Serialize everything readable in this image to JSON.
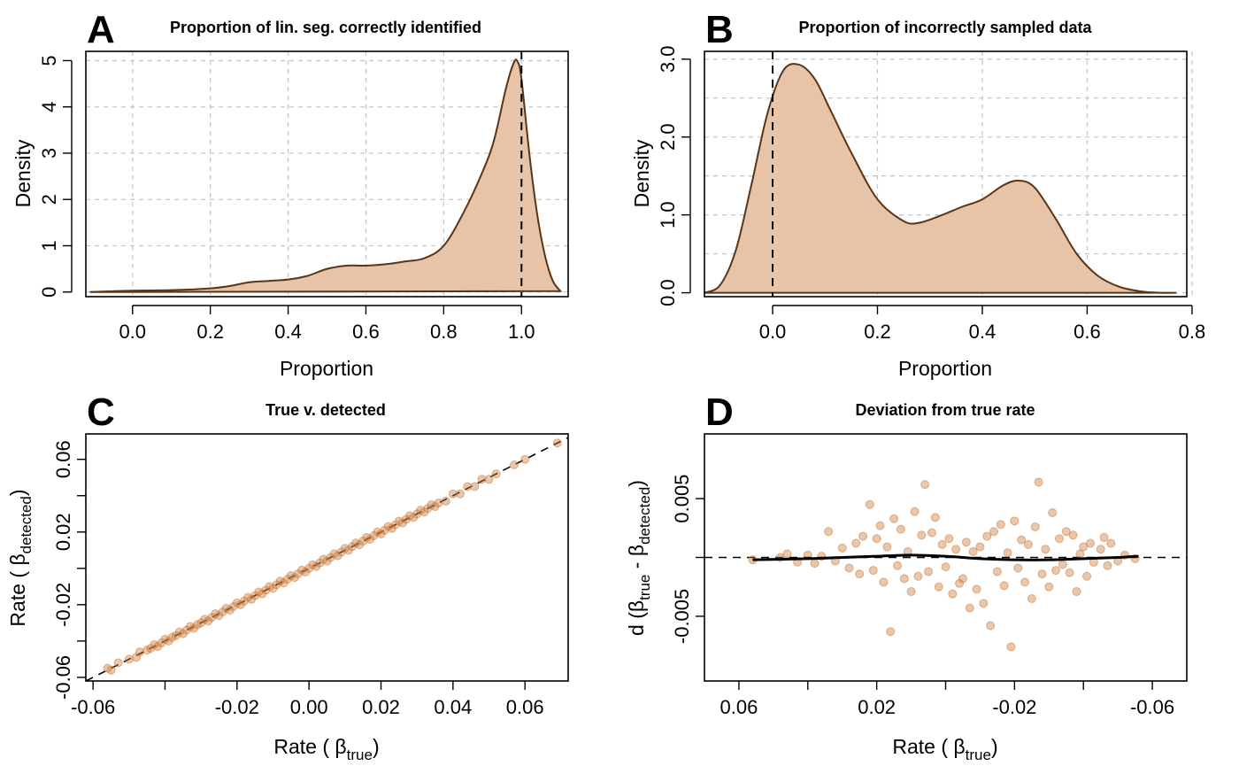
{
  "panels": {
    "A": {
      "letter": "A",
      "title": "Proportion of lin. seg. correctly identified",
      "xlabel": "Proportion",
      "ylabel": "Density"
    },
    "B": {
      "letter": "B",
      "title": "Proportion of incorrectly sampled data",
      "xlabel": "Proportion",
      "ylabel": "Density"
    },
    "C": {
      "letter": "C",
      "title": "True v. detected",
      "xlabel_main": "Rate ( ",
      "xlabel_greek": "β",
      "xlabel_sub": "true",
      "xlabel_close": ")",
      "ylabel_main": "Rate ( ",
      "ylabel_greek": "β",
      "ylabel_sub": "detected",
      "ylabel_close": ")"
    },
    "D": {
      "letter": "D",
      "title": "Deviation from true rate",
      "xlabel_main": "Rate ( ",
      "xlabel_greek": "β",
      "xlabel_sub": "true",
      "xlabel_close": ")",
      "ylabel_main": "d (",
      "ylabel_greek1": "β",
      "ylabel_sub1": "true",
      "ylabel_mid": " - ",
      "ylabel_greek2": "β",
      "ylabel_sub2": "detected",
      "ylabel_close": ")"
    }
  },
  "chart_data": [
    {
      "id": "A",
      "type": "area",
      "title": "Proportion of lin. seg. correctly identified",
      "xlabel": "Proportion",
      "ylabel": "Density",
      "xlim": [
        -0.12,
        1.12
      ],
      "ylim": [
        -0.1,
        5.2
      ],
      "xticks": [
        0.0,
        0.2,
        0.4,
        0.6,
        0.8,
        1.0
      ],
      "xtick_labels": [
        "0.0",
        "0.2",
        "0.4",
        "0.6",
        "0.8",
        "1.0"
      ],
      "yticks": [
        0,
        1,
        2,
        3,
        4,
        5
      ],
      "ytick_labels": [
        "0",
        "1",
        "2",
        "3",
        "4",
        "5"
      ],
      "grid": true,
      "reference_line": {
        "orientation": "vertical",
        "value": 1.0
      },
      "x": [
        -0.11,
        0.0,
        0.1,
        0.2,
        0.25,
        0.3,
        0.35,
        0.4,
        0.45,
        0.5,
        0.55,
        0.6,
        0.65,
        0.7,
        0.75,
        0.8,
        0.85,
        0.9,
        0.93,
        0.96,
        0.98,
        0.99,
        1.0,
        1.02,
        1.04,
        1.06,
        1.08,
        1.1
      ],
      "y": [
        0.0,
        0.03,
        0.04,
        0.08,
        0.13,
        0.21,
        0.24,
        0.27,
        0.35,
        0.5,
        0.57,
        0.57,
        0.6,
        0.66,
        0.73,
        1.0,
        1.7,
        2.6,
        3.3,
        4.4,
        4.95,
        4.98,
        4.6,
        3.0,
        1.7,
        0.8,
        0.25,
        0.02
      ]
    },
    {
      "id": "B",
      "type": "area",
      "title": "Proportion of incorrectly sampled data",
      "xlabel": "Proportion",
      "ylabel": "Density",
      "xlim": [
        -0.13,
        0.79
      ],
      "ylim": [
        -0.05,
        3.1
      ],
      "xticks": [
        0.0,
        0.2,
        0.4,
        0.6,
        0.8
      ],
      "xtick_labels": [
        "0.0",
        "0.2",
        "0.4",
        "0.6",
        "0.8"
      ],
      "yticks": [
        0.0,
        1.0,
        2.0,
        3.0
      ],
      "ytick_labels": [
        "0.0",
        "1.0",
        "2.0",
        "3.0"
      ],
      "ygrid": [
        0.0,
        0.5,
        1.0,
        1.5,
        2.0,
        2.5,
        3.0
      ],
      "grid": true,
      "reference_line": {
        "orientation": "vertical",
        "value": 0.0
      },
      "x": [
        -0.13,
        -0.1,
        -0.07,
        -0.04,
        -0.01,
        0.02,
        0.05,
        0.08,
        0.11,
        0.15,
        0.2,
        0.25,
        0.28,
        0.32,
        0.36,
        0.4,
        0.44,
        0.47,
        0.5,
        0.54,
        0.58,
        0.62,
        0.66,
        0.7,
        0.74,
        0.77
      ],
      "y": [
        0.0,
        0.1,
        0.55,
        1.4,
        2.3,
        2.85,
        2.93,
        2.75,
        2.35,
        1.8,
        1.2,
        0.92,
        0.9,
        0.99,
        1.1,
        1.2,
        1.38,
        1.44,
        1.35,
        0.95,
        0.5,
        0.22,
        0.08,
        0.02,
        0.0,
        0.0
      ]
    },
    {
      "id": "C",
      "type": "scatter",
      "title": "True v. detected",
      "xlabel": "Rate ( βtrue)",
      "ylabel": "Rate ( βdetected)",
      "xlim": [
        -0.062,
        0.072
      ],
      "ylim": [
        -0.062,
        0.074
      ],
      "xticks": [
        -0.06,
        -0.04,
        -0.02,
        0.0,
        0.02,
        0.04,
        0.06
      ],
      "xtick_labels": [
        "-0.06",
        "",
        "-0.02",
        "0.00",
        "0.02",
        "0.04",
        "0.06"
      ],
      "yticks": [
        -0.06,
        -0.04,
        -0.02,
        0.0,
        0.02,
        0.04,
        0.06
      ],
      "ytick_labels": [
        "-0.06",
        "",
        "-0.02",
        "",
        "0.02",
        "",
        "0.06"
      ],
      "reference_line": {
        "type": "identity"
      },
      "points": [
        [
          -0.056,
          -0.055
        ],
        [
          -0.055,
          -0.056
        ],
        [
          -0.053,
          -0.052
        ],
        [
          -0.05,
          -0.05
        ],
        [
          -0.048,
          -0.049
        ],
        [
          -0.047,
          -0.046
        ],
        [
          -0.045,
          -0.045
        ],
        [
          -0.044,
          -0.044
        ],
        [
          -0.043,
          -0.042
        ],
        [
          -0.042,
          -0.043
        ],
        [
          -0.041,
          -0.041
        ],
        [
          -0.04,
          -0.039
        ],
        [
          -0.039,
          -0.04
        ],
        [
          -0.038,
          -0.038
        ],
        [
          -0.037,
          -0.037
        ],
        [
          -0.036,
          -0.035
        ],
        [
          -0.035,
          -0.036
        ],
        [
          -0.034,
          -0.034
        ],
        [
          -0.033,
          -0.032
        ],
        [
          -0.032,
          -0.033
        ],
        [
          -0.031,
          -0.031
        ],
        [
          -0.03,
          -0.03
        ],
        [
          -0.029,
          -0.028
        ],
        [
          -0.028,
          -0.029
        ],
        [
          -0.027,
          -0.027
        ],
        [
          -0.026,
          -0.025
        ],
        [
          -0.025,
          -0.026
        ],
        [
          -0.024,
          -0.024
        ],
        [
          -0.023,
          -0.022
        ],
        [
          -0.022,
          -0.023
        ],
        [
          -0.021,
          -0.021
        ],
        [
          -0.02,
          -0.019
        ],
        [
          -0.019,
          -0.02
        ],
        [
          -0.018,
          -0.018
        ],
        [
          -0.017,
          -0.016
        ],
        [
          -0.016,
          -0.017
        ],
        [
          -0.015,
          -0.015
        ],
        [
          -0.014,
          -0.013
        ],
        [
          -0.013,
          -0.014
        ],
        [
          -0.012,
          -0.012
        ],
        [
          -0.011,
          -0.01
        ],
        [
          -0.01,
          -0.011
        ],
        [
          -0.009,
          -0.009
        ],
        [
          -0.008,
          -0.007
        ],
        [
          -0.007,
          -0.008
        ],
        [
          -0.006,
          -0.006
        ],
        [
          -0.005,
          -0.004
        ],
        [
          -0.004,
          -0.005
        ],
        [
          -0.003,
          -0.003
        ],
        [
          -0.002,
          -0.001
        ],
        [
          -0.001,
          -0.002
        ],
        [
          0.0,
          0.0
        ],
        [
          0.001,
          0.002
        ],
        [
          0.002,
          0.001
        ],
        [
          0.003,
          0.003
        ],
        [
          0.004,
          0.005
        ],
        [
          0.005,
          0.004
        ],
        [
          0.006,
          0.006
        ],
        [
          0.007,
          0.008
        ],
        [
          0.008,
          0.007
        ],
        [
          0.009,
          0.009
        ],
        [
          0.01,
          0.011
        ],
        [
          0.011,
          0.01
        ],
        [
          0.012,
          0.012
        ],
        [
          0.013,
          0.014
        ],
        [
          0.014,
          0.013
        ],
        [
          0.015,
          0.015
        ],
        [
          0.016,
          0.017
        ],
        [
          0.017,
          0.016
        ],
        [
          0.018,
          0.018
        ],
        [
          0.019,
          0.02
        ],
        [
          0.02,
          0.019
        ],
        [
          0.021,
          0.021
        ],
        [
          0.022,
          0.023
        ],
        [
          0.023,
          0.022
        ],
        [
          0.024,
          0.024
        ],
        [
          0.025,
          0.026
        ],
        [
          0.026,
          0.025
        ],
        [
          0.027,
          0.027
        ],
        [
          0.028,
          0.029
        ],
        [
          0.029,
          0.028
        ],
        [
          0.03,
          0.03
        ],
        [
          0.031,
          0.032
        ],
        [
          0.032,
          0.031
        ],
        [
          0.033,
          0.033
        ],
        [
          0.034,
          0.035
        ],
        [
          0.035,
          0.034
        ],
        [
          0.036,
          0.036
        ],
        [
          0.038,
          0.037
        ],
        [
          0.04,
          0.041
        ],
        [
          0.042,
          0.041
        ],
        [
          0.044,
          0.045
        ],
        [
          0.046,
          0.045
        ],
        [
          0.048,
          0.049
        ],
        [
          0.05,
          0.049
        ],
        [
          0.052,
          0.052
        ],
        [
          0.057,
          0.057
        ],
        [
          0.06,
          0.06
        ],
        [
          0.069,
          0.069
        ]
      ]
    },
    {
      "id": "D",
      "type": "scatter",
      "title": "Deviation from true rate",
      "xlabel": "Rate ( βtrue)",
      "ylabel": "d (βtrue - βdetected)",
      "x_reversed": true,
      "y_reversed": true,
      "xlim": [
        0.07,
        -0.07
      ],
      "ylim": [
        -0.0105,
        0.0105
      ],
      "xticks": [
        0.06,
        0.04,
        0.02,
        0.0,
        -0.02,
        -0.04,
        -0.06
      ],
      "xtick_labels": [
        "0.06",
        "",
        "0.02",
        "",
        "-0.02",
        "",
        "-0.06"
      ],
      "yticks": [
        -0.005,
        0.0,
        0.005
      ],
      "ytick_labels": [
        "-0.005",
        "",
        "0.005"
      ],
      "reference_line": {
        "orientation": "horizontal",
        "value": 0.0
      },
      "smooth_line": {
        "x": [
          0.056,
          0.04,
          0.03,
          0.02,
          0.01,
          0.0,
          -0.01,
          -0.02,
          -0.03,
          -0.04,
          -0.05,
          -0.056
        ],
        "y": [
          -0.0002,
          -0.0001,
          0.0,
          0.0001,
          0.0002,
          0.0001,
          -0.0001,
          -0.0002,
          -0.0002,
          -0.0001,
          0.0,
          0.0001
        ]
      },
      "points": [
        [
          0.056,
          -0.0002
        ],
        [
          0.048,
          0.0
        ],
        [
          0.046,
          0.0003
        ],
        [
          0.043,
          -0.0004
        ],
        [
          0.04,
          0.0002
        ],
        [
          0.038,
          -0.0005
        ],
        [
          0.036,
          0.0001
        ],
        [
          0.034,
          0.0022
        ],
        [
          0.032,
          -0.0003
        ],
        [
          0.03,
          0.0008
        ],
        [
          0.028,
          -0.0009
        ],
        [
          0.026,
          0.0012
        ],
        [
          0.025,
          -0.0014
        ],
        [
          0.024,
          0.0018
        ],
        [
          0.022,
          0.0045
        ],
        [
          0.021,
          -0.0011
        ],
        [
          0.02,
          0.0016
        ],
        [
          0.019,
          0.0027
        ],
        [
          0.018,
          -0.0021
        ],
        [
          0.017,
          0.0009
        ],
        [
          0.016,
          -0.0063
        ],
        [
          0.015,
          0.0033
        ],
        [
          0.014,
          -0.0007
        ],
        [
          0.013,
          0.0024
        ],
        [
          0.012,
          -0.0018
        ],
        [
          0.011,
          0.0005
        ],
        [
          0.01,
          -0.0029
        ],
        [
          0.009,
          0.0039
        ],
        [
          0.008,
          -0.0016
        ],
        [
          0.007,
          0.0019
        ],
        [
          0.006,
          0.0062
        ],
        [
          0.005,
          -0.0012
        ],
        [
          0.004,
          0.0021
        ],
        [
          0.003,
          0.0034
        ],
        [
          0.002,
          -0.0025
        ],
        [
          0.001,
          0.0011
        ],
        [
          0.0,
          -0.0008
        ],
        [
          -0.001,
          0.0016
        ],
        [
          -0.002,
          -0.0031
        ],
        [
          -0.003,
          0.0007
        ],
        [
          -0.004,
          -0.0022
        ],
        [
          -0.005,
          -0.0018
        ],
        [
          -0.006,
          0.0013
        ],
        [
          -0.007,
          -0.0043
        ],
        [
          -0.008,
          0.0005
        ],
        [
          -0.009,
          -0.0027
        ],
        [
          -0.01,
          0.0009
        ],
        [
          -0.011,
          -0.0039
        ],
        [
          -0.012,
          0.0018
        ],
        [
          -0.013,
          -0.0058
        ],
        [
          -0.014,
          0.0022
        ],
        [
          -0.015,
          -0.0012
        ],
        [
          -0.016,
          0.0028
        ],
        [
          -0.017,
          -0.0024
        ],
        [
          -0.018,
          0.0004
        ],
        [
          -0.019,
          -0.0076
        ],
        [
          -0.02,
          0.0031
        ],
        [
          -0.021,
          -0.0009
        ],
        [
          -0.022,
          0.0015
        ],
        [
          -0.023,
          -0.0021
        ],
        [
          -0.024,
          0.0011
        ],
        [
          -0.025,
          -0.0035
        ],
        [
          -0.026,
          0.0026
        ],
        [
          -0.027,
          0.0064
        ],
        [
          -0.028,
          -0.0014
        ],
        [
          -0.029,
          0.0007
        ],
        [
          -0.03,
          -0.0025
        ],
        [
          -0.031,
          0.0038
        ],
        [
          -0.032,
          -0.0011
        ],
        [
          -0.033,
          0.0016
        ],
        [
          -0.034,
          -0.0006
        ],
        [
          -0.035,
          0.0022
        ],
        [
          -0.036,
          -0.0013
        ],
        [
          -0.037,
          0.0019
        ],
        [
          -0.038,
          -0.0029
        ],
        [
          -0.039,
          0.0003
        ],
        [
          -0.04,
          0.0009
        ],
        [
          -0.041,
          -0.0016
        ],
        [
          -0.042,
          0.0012
        ],
        [
          -0.043,
          -0.0004
        ],
        [
          -0.045,
          0.0007
        ],
        [
          -0.046,
          0.0017
        ],
        [
          -0.047,
          -0.0007
        ],
        [
          -0.048,
          0.0012
        ],
        [
          -0.05,
          -0.0003
        ],
        [
          -0.052,
          0.0002
        ],
        [
          -0.055,
          -0.0001
        ]
      ]
    }
  ]
}
